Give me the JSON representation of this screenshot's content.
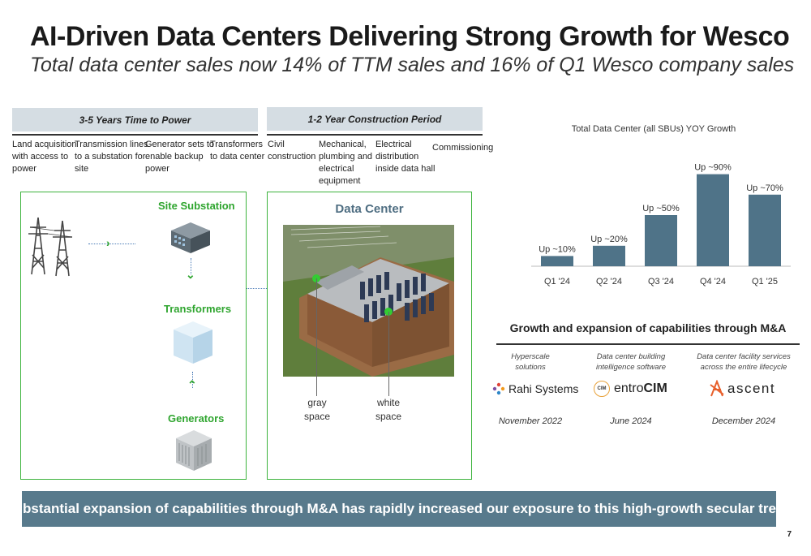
{
  "title": "AI-Driven Data Centers Delivering Strong Growth for Wesco",
  "subtitle": "Total data center sales now 14% of TTM sales and 16% of Q1 Wesco company sales",
  "phases": [
    {
      "label": "3-5 Years Time to Power"
    },
    {
      "label": "1-2 Year Construction Period"
    }
  ],
  "steps": [
    {
      "line1": "Land acquisition",
      "line2": "with access to",
      "line3": "power"
    },
    {
      "line1": "Transmission lines",
      "line2": "to a substation for",
      "line3": "site"
    },
    {
      "line1": "Generator sets to",
      "line2": "enable backup",
      "line3": "power"
    },
    {
      "line1": "Transformers",
      "line2": "to data center",
      "line3": ""
    },
    {
      "line1": "Civil",
      "line2": "construction",
      "line3": ""
    },
    {
      "line1": "Mechanical,",
      "line2": "plumbing and",
      "line3": "electrical",
      "line4": "equipment"
    },
    {
      "line1": "Electrical",
      "line2": "distribution",
      "line3": "inside data hall"
    },
    {
      "line1": "Commissioning",
      "line2": "",
      "line3": ""
    }
  ],
  "power_box": {
    "site_substation": "Site Substation",
    "transformers": "Transformers",
    "generators": "Generators"
  },
  "datacenter_box": {
    "label": "Data Center",
    "gray_space_1": "gray",
    "gray_space_2": "space",
    "white_space_1": "white",
    "white_space_2": "space"
  },
  "chart_data": {
    "type": "bar",
    "title": "Total Data Center (all SBUs) YOY Growth",
    "categories": [
      "Q1 '24",
      "Q2 '24",
      "Q3 '24",
      "Q4 '24",
      "Q1 '25"
    ],
    "values": [
      10,
      20,
      50,
      90,
      70
    ],
    "data_labels": [
      "Up ~10%",
      "Up ~20%",
      "Up ~50%",
      "Up ~90%",
      "Up ~70%"
    ],
    "ylim": [
      0,
      100
    ],
    "grid": false,
    "bar_color": "#4f7388"
  },
  "ma": {
    "title": "Growth and expansion of capabilities through M&A",
    "items": [
      {
        "cap1": "Hyperscale",
        "cap2": "solutions",
        "logo": "Rahi Systems",
        "date": "November 2022"
      },
      {
        "cap1": "Data center building",
        "cap2": "intelligence software",
        "logo_a": "entro",
        "logo_b": "CIM",
        "logo_badge": "CIM",
        "date": "June 2024"
      },
      {
        "cap1": "Data center facility services",
        "cap2": "across the entire lifecycle",
        "logo": "ascent",
        "date": "December 2024"
      }
    ]
  },
  "banner": "Substantial expansion of capabilities through M&A has rapidly increased our exposure to this high-growth secular trend",
  "page_number": "7",
  "colors": {
    "accent_green": "#3db33d",
    "slate_blue": "#587a8c",
    "phase_header": "#d5dde3"
  }
}
